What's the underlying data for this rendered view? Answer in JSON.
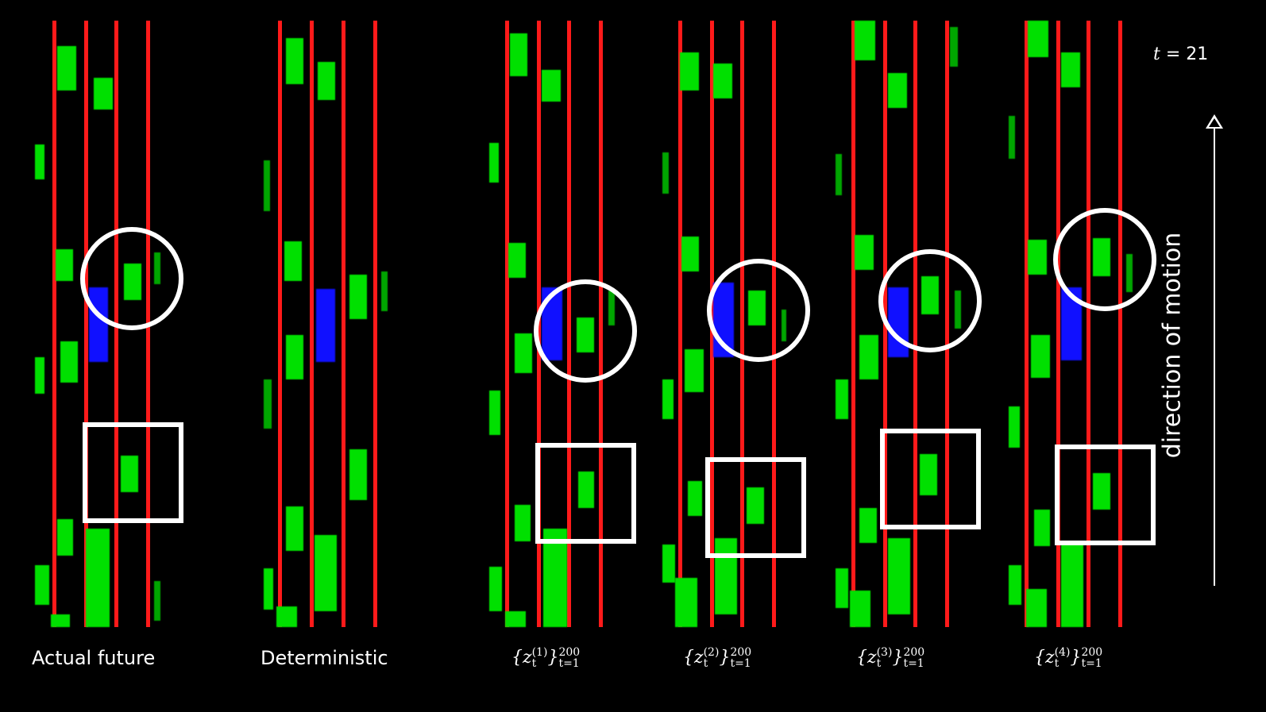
{
  "labels": {
    "actual": "Actual future",
    "deterministic": "Deterministic",
    "sample_prefix": "{z",
    "sample_sub": "t",
    "sample_range_sub": "t=1",
    "sample_range_sup": "200",
    "sample_indices": [
      "(1)",
      "(2)",
      "(3)",
      "(4)"
    ]
  },
  "time": {
    "var": "t",
    "value": "= 21"
  },
  "direction": "direction of motion",
  "colors": {
    "lane": "#ff1a1a",
    "vehicle": "#00e000",
    "ego": "#1010ff",
    "marker": "#ffffff",
    "background": "#000000"
  }
}
